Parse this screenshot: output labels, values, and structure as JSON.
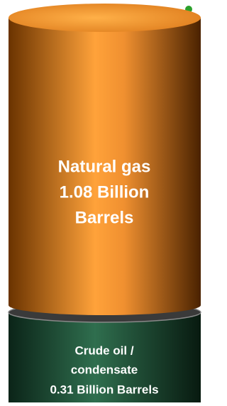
{
  "segments": [
    {
      "lines": [
        "Natural gas",
        "1.08 Billion",
        "Barrels"
      ]
    },
    {
      "lines": [
        "Crude oil /",
        "condensate",
        "0.31 Billion Barrels"
      ]
    }
  ]
}
